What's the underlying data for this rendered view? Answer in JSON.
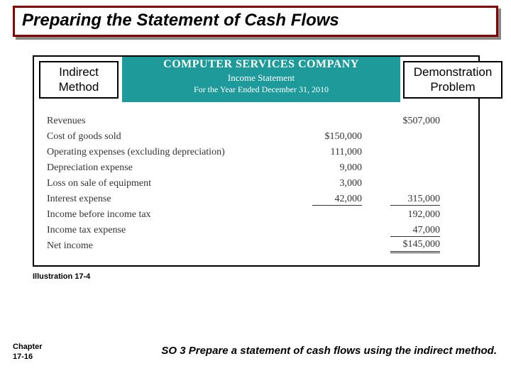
{
  "title": "Preparing the Statement of Cash Flows",
  "labels": {
    "left_line1": "Indirect",
    "left_line2": "Method",
    "right_line1": "Demonstration",
    "right_line2": "Problem"
  },
  "header": {
    "company": "COMPUTER SERVICES COMPANY",
    "statement": "Income Statement",
    "period": "For the Year Ended December 31, 2010"
  },
  "lines": {
    "revenues_label": "Revenues",
    "revenues_amt": "$507,000",
    "cogs_label": "Cost of goods sold",
    "cogs_amt": "$150,000",
    "opex_label": "Operating expenses (excluding depreciation)",
    "opex_amt": "111,000",
    "dep_label": "Depreciation expense",
    "dep_amt": "9,000",
    "loss_label": "Loss on sale of equipment",
    "loss_amt": "3,000",
    "int_label": "Interest expense",
    "int_amt": "42,000",
    "total_exp": "315,000",
    "pretax_label": "Income before income tax",
    "pretax_amt": "192,000",
    "tax_label": "Income tax expense",
    "tax_amt": "47,000",
    "net_label": "Net income",
    "net_amt": "$145,000"
  },
  "illustration": "Illustration 17-4",
  "chapter_l1": "Chapter",
  "chapter_l2": "17-16",
  "footer": "SO 3  Prepare a statement of cash flows using the indirect method.",
  "colors": {
    "title_border": "#880000",
    "teal": "#1f9a9a",
    "shadow": "#888888"
  }
}
